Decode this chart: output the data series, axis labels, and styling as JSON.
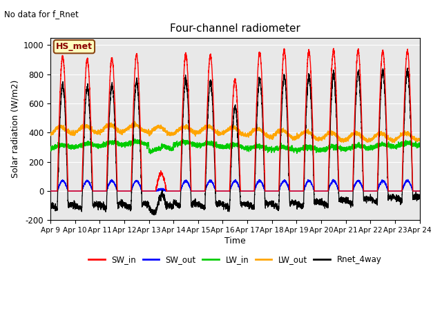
{
  "title": "Four-channel radiometer",
  "subtitle": "No data for f_Rnet",
  "xlabel": "Time",
  "ylabel": "Solar radiation (W/m2)",
  "station_label": "HS_met",
  "ylim": [
    -200,
    1050
  ],
  "yticks": [
    -200,
    0,
    200,
    400,
    600,
    800,
    1000
  ],
  "xtick_labels": [
    "Apr 9",
    "Apr 10",
    "Apr 11",
    "Apr 12",
    "Apr 13",
    "Apr 14",
    "Apr 15",
    "Apr 16",
    "Apr 17",
    "Apr 18",
    "Apr 19",
    "Apr 20",
    "Apr 21",
    "Apr 22",
    "Apr 23",
    "Apr 24"
  ],
  "colors": {
    "SW_in": "#ff0000",
    "SW_out": "#0000ff",
    "LW_in": "#00cc00",
    "LW_out": "#ffa500",
    "Rnet_4way": "#000000"
  },
  "bg_color": "#e8e8e8",
  "fig_bg": "#ffffff",
  "grid_color": "#ffffff",
  "n_days": 15,
  "pts_per_day": 288
}
